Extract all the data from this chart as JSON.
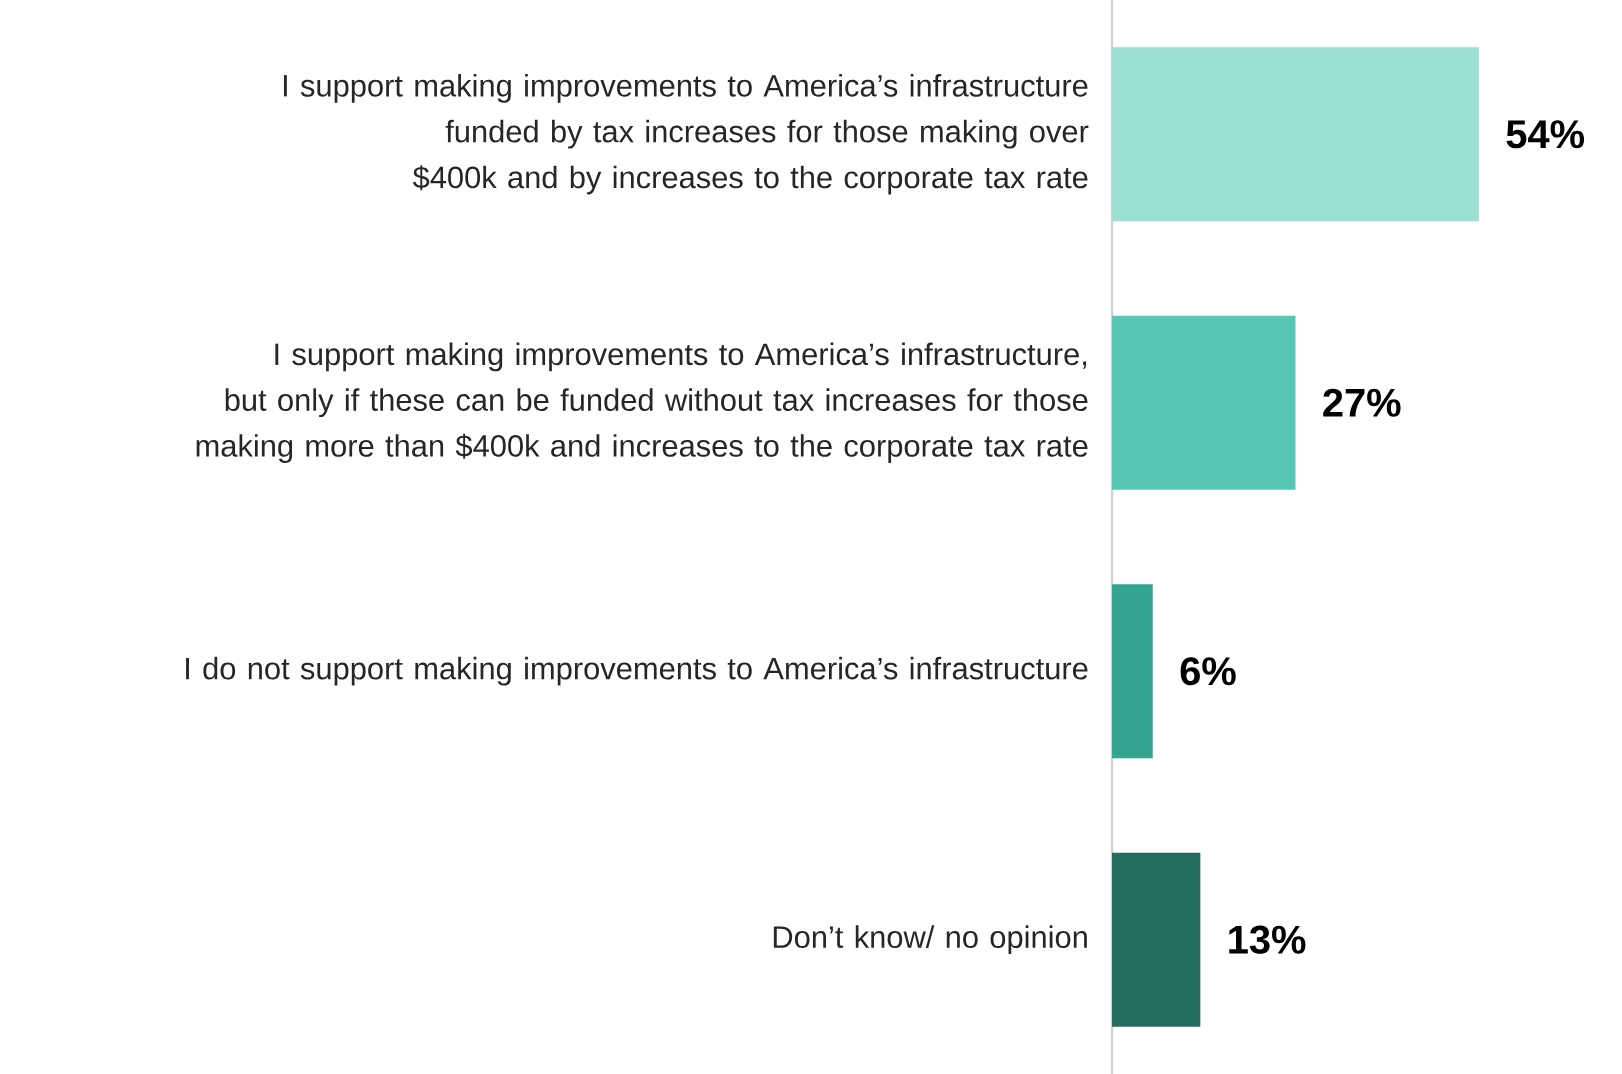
{
  "chart_data": {
    "type": "bar",
    "orientation": "horizontal",
    "categories": [
      "I support making improvements to America’s infrastructure funded by tax increases for those making over $400k and by increases to the corporate tax rate",
      "I support making improvements to America’s infrastructure, but only if these can be funded without tax increases for those making more than $400k and increases to the corporate tax rate",
      "I do not support making improvements to America’s infrastructure",
      "Don’t know/ no opinion"
    ],
    "values": [
      54,
      27,
      6,
      13
    ],
    "colors": [
      "#9ce0d4",
      "#57c7b4",
      "#36a493",
      "#236c5e"
    ],
    "value_labels": [
      "54%",
      "27%",
      "6%",
      "13%"
    ]
  }
}
